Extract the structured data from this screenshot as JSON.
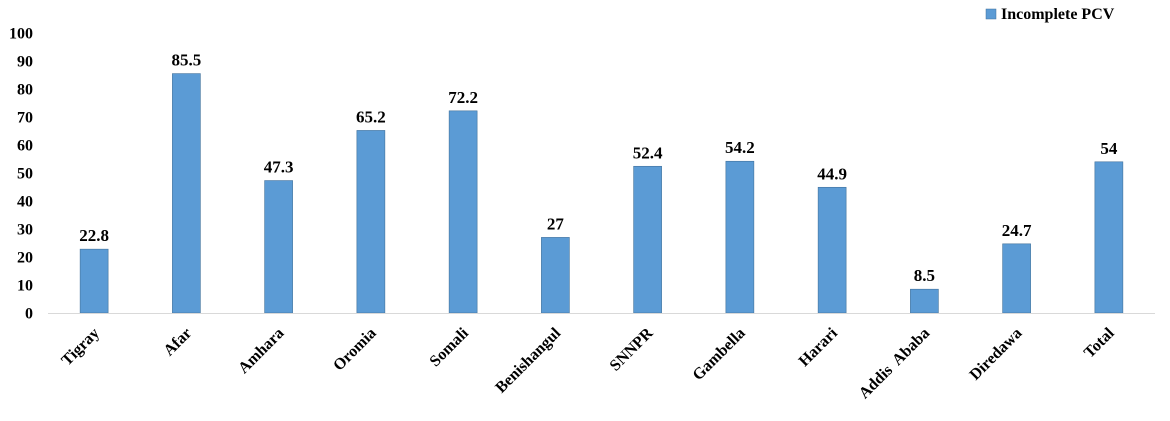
{
  "chart_data": {
    "type": "bar",
    "title": "",
    "xlabel": "",
    "ylabel": "",
    "ylim": [
      0,
      100
    ],
    "yticks": [
      0,
      10,
      20,
      30,
      40,
      50,
      60,
      70,
      80,
      90,
      100
    ],
    "grid": false,
    "legend_position": "top-right",
    "categories": [
      "Tigray",
      "Afar",
      "Amhara",
      "Oromia",
      "Somali",
      "Benishangul",
      "SNNPR",
      "Gambella",
      "Harari",
      "Addis  Ababa",
      "Diredawa",
      "Total"
    ],
    "series": [
      {
        "name": "Incomplete PCV",
        "color": "#5b9bd5",
        "values": [
          22.8,
          85.5,
          47.3,
          65.2,
          72.2,
          27,
          52.4,
          54.2,
          44.9,
          8.5,
          24.7,
          54
        ]
      }
    ]
  }
}
